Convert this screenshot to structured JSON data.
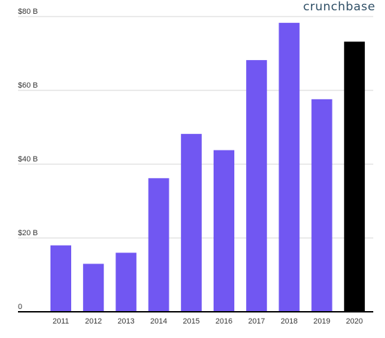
{
  "brand": {
    "name": "crunchbase"
  },
  "chart_data": {
    "type": "bar",
    "title": "",
    "xlabel": "",
    "ylabel": "",
    "categories": [
      "2011",
      "2012",
      "2013",
      "2014",
      "2015",
      "2016",
      "2017",
      "2018",
      "2019",
      "2020"
    ],
    "values": [
      18,
      13,
      16,
      36.2,
      48.2,
      43.8,
      68.2,
      78.3,
      57.6,
      73.2
    ],
    "ylim": [
      0,
      80
    ],
    "yticks": [
      0,
      20,
      40,
      60,
      80
    ],
    "ytick_labels": [
      "0",
      "$20 B",
      "$40 B",
      "$60 B",
      "$80 B"
    ],
    "grid": true,
    "legend": "none",
    "colors": {
      "default_bar": "#7157f2",
      "highlight_bar": "#000000",
      "highlight_category": "2020",
      "gridline": "#d6d6d6",
      "baseline": "#000000",
      "tick_label": "#333333"
    }
  }
}
